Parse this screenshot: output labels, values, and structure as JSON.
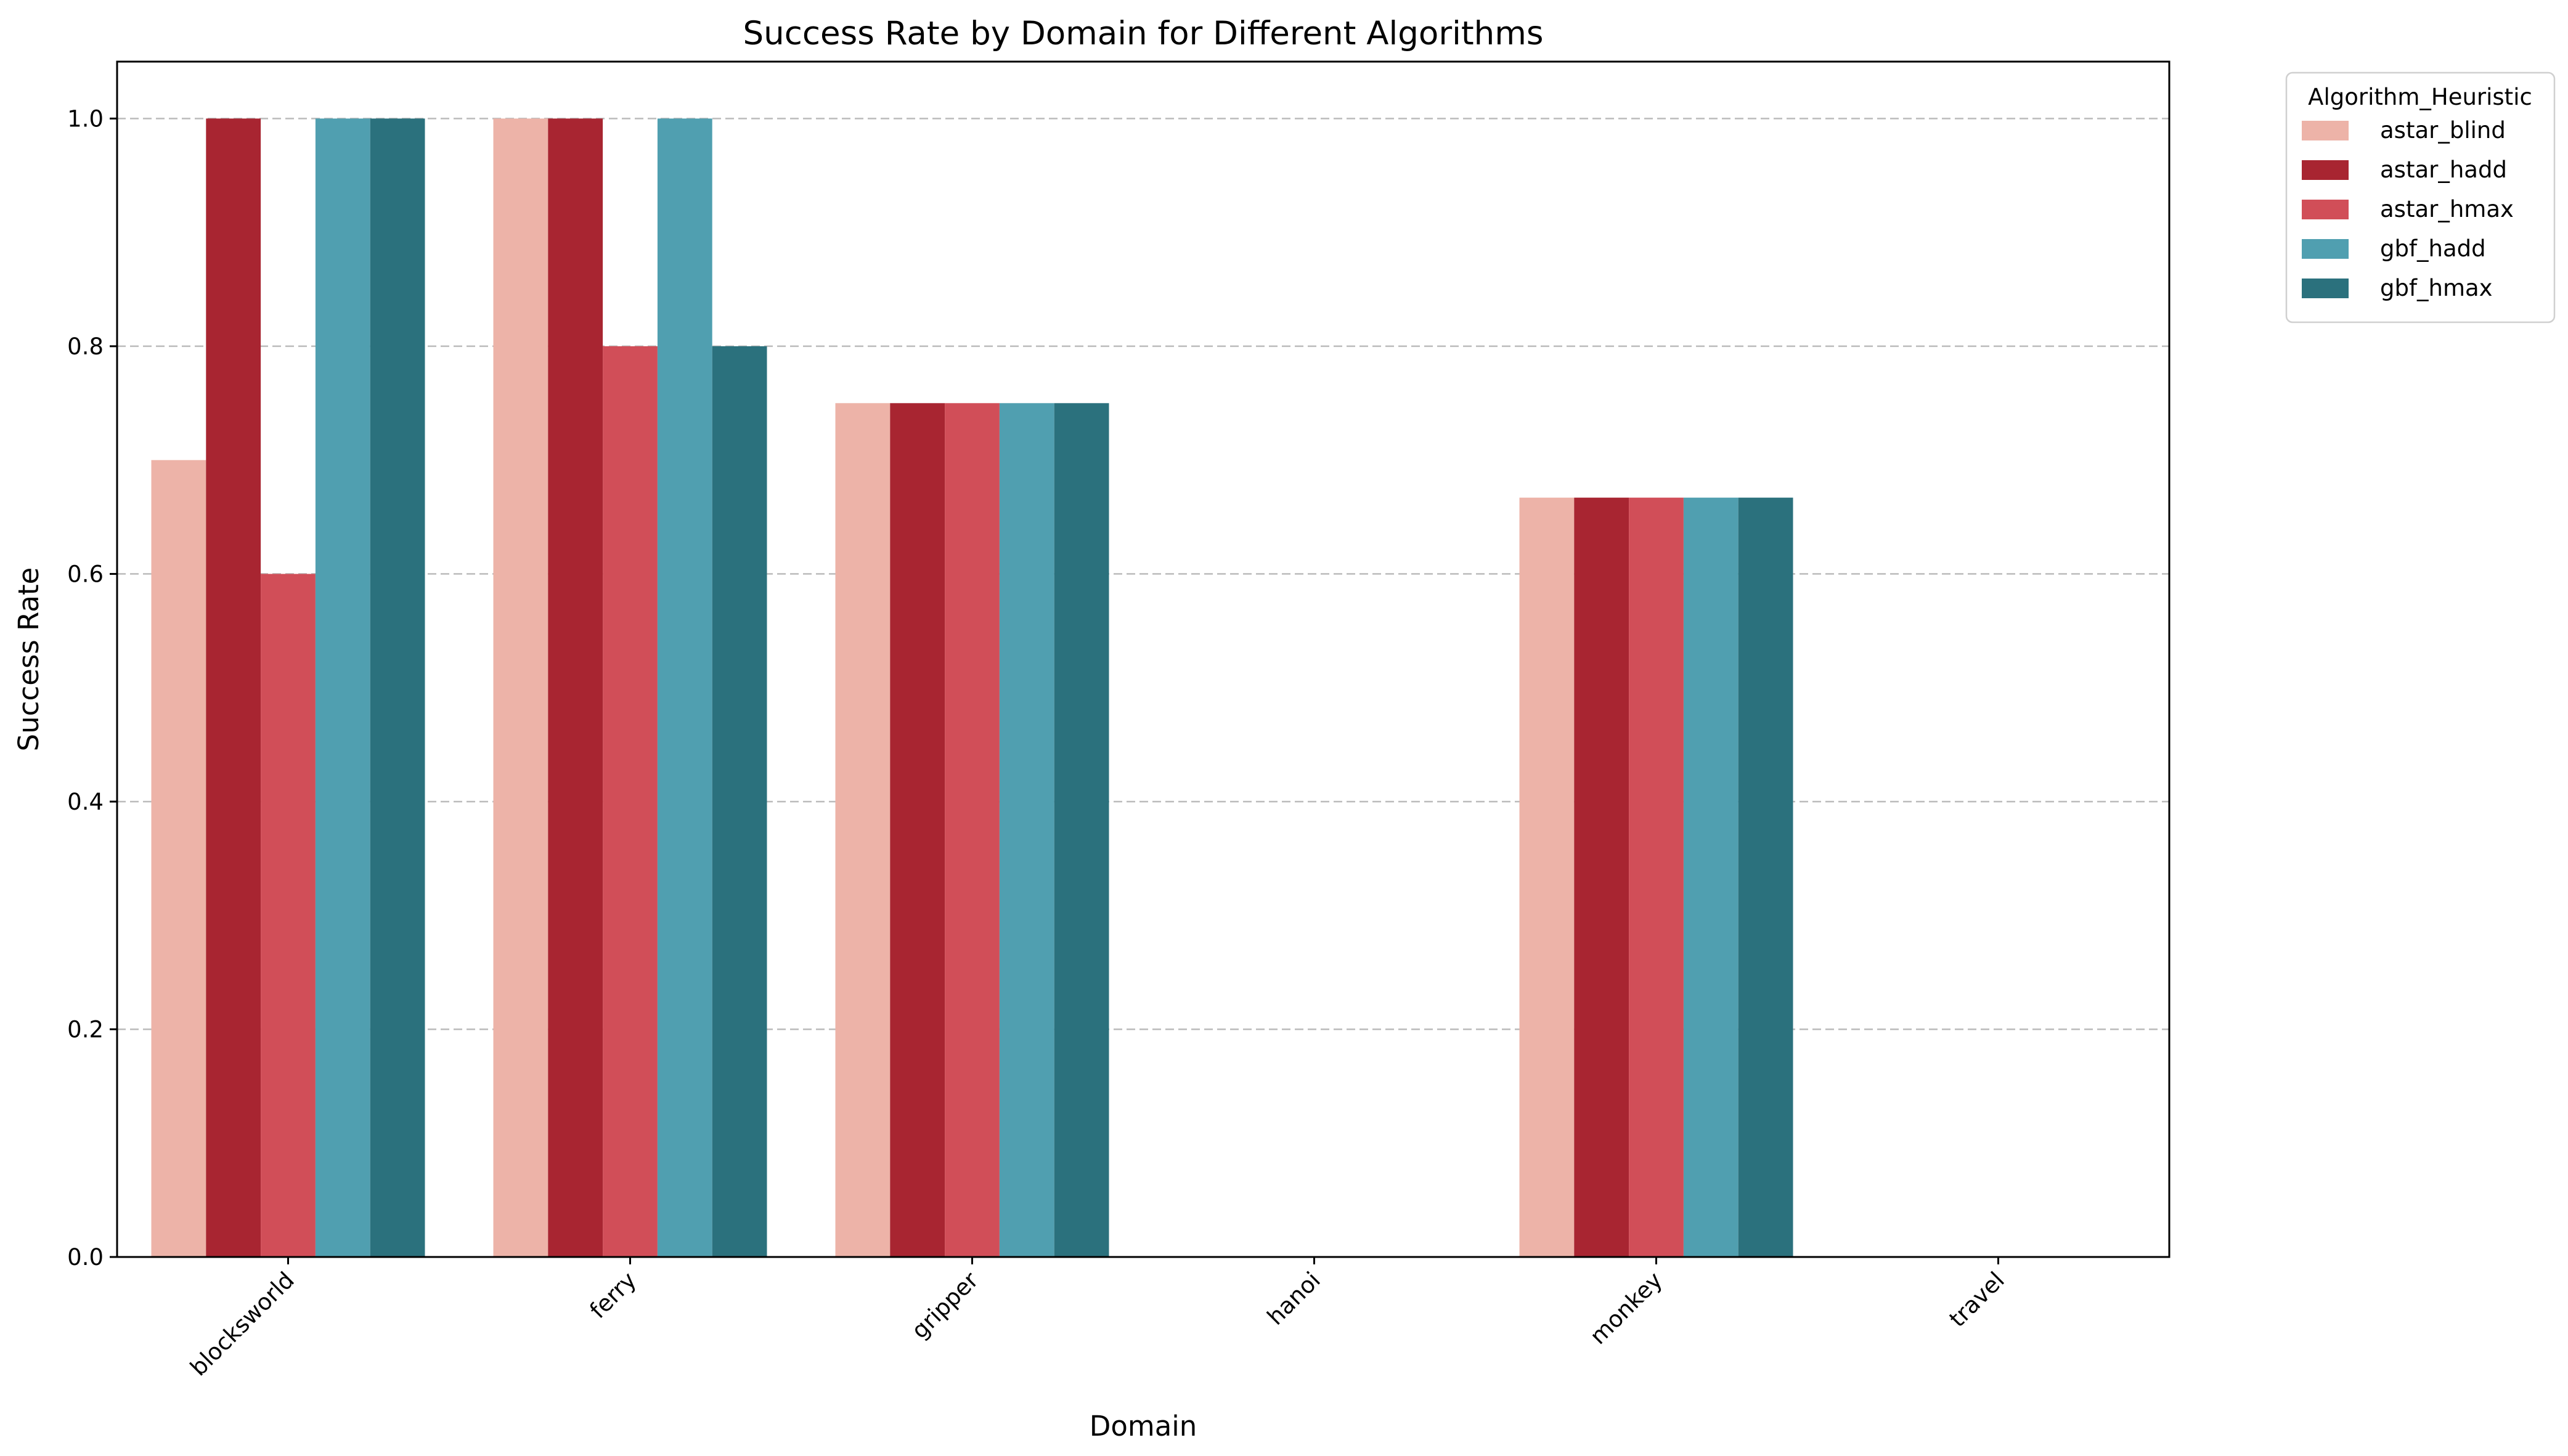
{
  "chart_data": {
    "type": "bar",
    "title": "Success Rate by Domain for Different Algorithms",
    "xlabel": "Domain",
    "ylabel": "Success Rate",
    "ylim": [
      0,
      1.05
    ],
    "yticks": [
      0.0,
      0.2,
      0.4,
      0.6,
      0.8,
      1.0
    ],
    "ytick_labels": [
      "0.0",
      "0.2",
      "0.4",
      "0.6",
      "0.8",
      "1.0"
    ],
    "grid": "y-dashed",
    "legend_placement": "outside-top-right",
    "legend_title": "Algorithm_Heuristic",
    "categories": [
      "blocksworld",
      "ferry",
      "gripper",
      "hanoi",
      "monkey",
      "travel"
    ],
    "series": [
      {
        "name": "astar_blind",
        "color": "#edb3a8",
        "values": [
          0.7,
          1.0,
          0.75,
          0.0,
          0.667,
          0.0
        ]
      },
      {
        "name": "astar_hadd",
        "color": "#a82531",
        "values": [
          1.0,
          1.0,
          0.75,
          0.0,
          0.667,
          0.0
        ]
      },
      {
        "name": "astar_hmax",
        "color": "#d14e58",
        "values": [
          0.6,
          0.8,
          0.75,
          0.0,
          0.667,
          0.0
        ]
      },
      {
        "name": "gbf_hadd",
        "color": "#509fb0",
        "values": [
          1.0,
          1.0,
          0.75,
          0.0,
          0.667,
          0.0
        ]
      },
      {
        "name": "gbf_hmax",
        "color": "#2b717d",
        "values": [
          1.0,
          0.8,
          0.75,
          0.0,
          0.667,
          0.0
        ]
      }
    ]
  }
}
